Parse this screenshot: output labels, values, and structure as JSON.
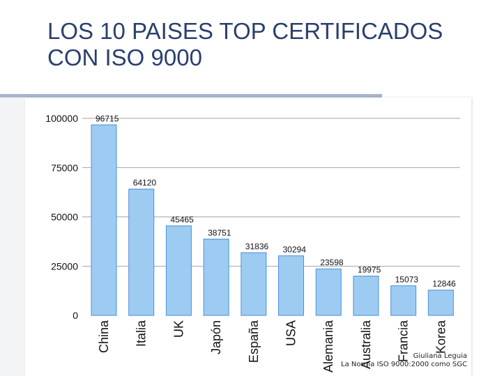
{
  "slide": {
    "title_line1": "LOS 10 PAISES TOP CERTIFICADOS",
    "title_line2": "CON ISO 9000",
    "credit_line1": "Giuliana Leguia",
    "credit_line2": "La Norma ISO 9000:2000 como SGC"
  },
  "colors": {
    "title": "#2a3f6e",
    "bar_fill": "#9ecbf2",
    "bar_stroke": "#4a90d9",
    "grid": "#888888"
  },
  "chart_data": {
    "type": "bar",
    "title": "",
    "xlabel": "",
    "ylabel": "",
    "categories": [
      "China",
      "Italia",
      "UK",
      "Japón",
      "España",
      "USA",
      "Alemania",
      "Australia",
      "Francia",
      "Korea"
    ],
    "values": [
      96715,
      64120,
      45465,
      38751,
      31836,
      30294,
      23598,
      19975,
      15073,
      12846
    ],
    "value_labels": [
      "96715",
      "64120",
      "45465",
      "38751",
      "31836",
      "30294",
      "23598",
      "19975",
      "15073",
      "12846"
    ],
    "yticks": [
      0,
      25000,
      50000,
      75000,
      100000
    ],
    "ytick_labels": [
      "0",
      "25000",
      "50000",
      "75000",
      "100000"
    ],
    "ylim": [
      0,
      100000
    ],
    "grid": false,
    "legend": "none"
  }
}
